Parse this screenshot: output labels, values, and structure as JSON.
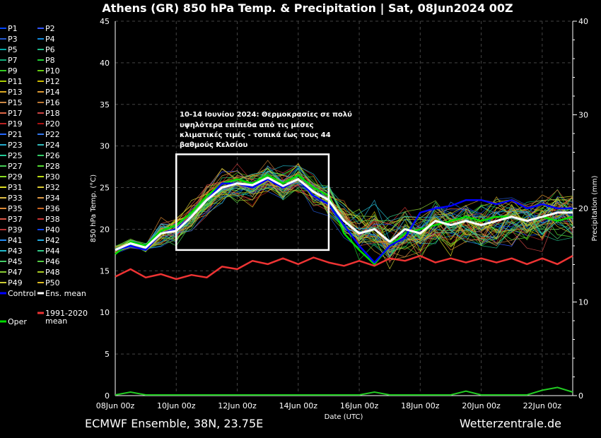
{
  "chart_data": {
    "type": "line",
    "title": "Athens  (GR)  850 hPa Temp. & Precipitation | Sat, 08Jun2024 00Z",
    "ylabel": "850 hPa Temp. (°C)",
    "y2label": "Precipitation (mm)",
    "xlabel": "Date (UTC)",
    "ylim": [
      0,
      45
    ],
    "y2lim": [
      0,
      40
    ],
    "xlim": [
      0,
      15
    ],
    "yticks": [
      "0",
      "5",
      "10",
      "15",
      "20",
      "25",
      "30",
      "35",
      "40",
      "45"
    ],
    "y2ticks": [
      "0",
      "10",
      "20",
      "30",
      "40"
    ],
    "xticks": [
      {
        "x": 0,
        "label": "08Jun 00z"
      },
      {
        "x": 2,
        "label": "10Jun 00z"
      },
      {
        "x": 4,
        "label": "12Jun 00z"
      },
      {
        "x": 6,
        "label": "14Jun 00z"
      },
      {
        "x": 8,
        "label": "16Jun 00z"
      },
      {
        "x": 10,
        "label": "18Jun 00z"
      },
      {
        "x": 12,
        "label": "20Jun 00z"
      },
      {
        "x": 14,
        "label": "22Jun 00z"
      }
    ],
    "grid": true,
    "legend_position": "left",
    "legend": [
      {
        "name": "P1",
        "color": "#0044ff"
      },
      {
        "name": "P2",
        "color": "#3355ff"
      },
      {
        "name": "P3",
        "color": "#2255cc"
      },
      {
        "name": "P4",
        "color": "#1188dd"
      },
      {
        "name": "P5",
        "color": "#00aaaa"
      },
      {
        "name": "P6",
        "color": "#22bb88"
      },
      {
        "name": "P7",
        "color": "#11aa77"
      },
      {
        "name": "P8",
        "color": "#22cc33"
      },
      {
        "name": "P9",
        "color": "#33cc22"
      },
      {
        "name": "P10",
        "color": "#66cc11"
      },
      {
        "name": "P11",
        "color": "#aacc00"
      },
      {
        "name": "P12",
        "color": "#ccbb00"
      },
      {
        "name": "P13",
        "color": "#ddaa22"
      },
      {
        "name": "P14",
        "color": "#dd9933"
      },
      {
        "name": "P15",
        "color": "#cc8844"
      },
      {
        "name": "P16",
        "color": "#bb7733"
      },
      {
        "name": "P17",
        "color": "#dd6644"
      },
      {
        "name": "P18",
        "color": "#cc4444"
      },
      {
        "name": "P19",
        "color": "#bb2222"
      },
      {
        "name": "P20",
        "color": "#aa1111"
      },
      {
        "name": "P21",
        "color": "#2266ff"
      },
      {
        "name": "P22",
        "color": "#3377ee"
      },
      {
        "name": "P23",
        "color": "#22aacc"
      },
      {
        "name": "P24",
        "color": "#33bbbb"
      },
      {
        "name": "P25",
        "color": "#22cc99"
      },
      {
        "name": "P26",
        "color": "#33cc66"
      },
      {
        "name": "P27",
        "color": "#44cc55"
      },
      {
        "name": "P28",
        "color": "#55dd33"
      },
      {
        "name": "P29",
        "color": "#88dd22"
      },
      {
        "name": "P30",
        "color": "#bbdd11"
      },
      {
        "name": "P31",
        "color": "#dddd22"
      },
      {
        "name": "P32",
        "color": "#ddcc33"
      },
      {
        "name": "P33",
        "color": "#ddbb44"
      },
      {
        "name": "P34",
        "color": "#dd9944"
      },
      {
        "name": "P35",
        "color": "#dd8833"
      },
      {
        "name": "P36",
        "color": "#cc6622"
      },
      {
        "name": "P37",
        "color": "#dd5544"
      },
      {
        "name": "P38",
        "color": "#cc3333"
      },
      {
        "name": "P39",
        "color": "#bb3333"
      },
      {
        "name": "P40",
        "color": "#1144ee"
      },
      {
        "name": "P41",
        "color": "#2288ee"
      },
      {
        "name": "P42",
        "color": "#22aadd"
      },
      {
        "name": "P43",
        "color": "#22bbcc"
      },
      {
        "name": "P44",
        "color": "#33cc88"
      },
      {
        "name": "P45",
        "color": "#44cc66"
      },
      {
        "name": "P46",
        "color": "#55cc44"
      },
      {
        "name": "P47",
        "color": "#88cc33"
      },
      {
        "name": "P48",
        "color": "#aacc22"
      },
      {
        "name": "P49",
        "color": "#cccc33"
      },
      {
        "name": "P50",
        "color": "#ddbb22"
      },
      {
        "name": "Control",
        "color": "#0000ff"
      },
      {
        "name": "Ens. mean",
        "color": "#ffffff"
      },
      {
        "name": "1991-2020 mean",
        "color": "#ee3333"
      },
      {
        "name": "Oper",
        "color": "#00dd00"
      }
    ],
    "x": [
      0,
      0.5,
      1,
      1.5,
      2,
      2.5,
      3,
      3.5,
      4,
      4.5,
      5,
      5.5,
      6,
      6.5,
      7,
      7.5,
      8,
      8.5,
      9,
      9.5,
      10,
      10.5,
      11,
      11.5,
      12,
      12.5,
      13,
      13.5,
      14,
      14.5,
      15
    ],
    "series": [
      {
        "name": "Ens. mean",
        "color": "#ffffff",
        "values": [
          17.5,
          18.3,
          17.8,
          19.5,
          19.8,
          21.5,
          23.5,
          25,
          25.5,
          25.3,
          26.2,
          25.2,
          26,
          24.5,
          23.5,
          21,
          19.5,
          20,
          18.5,
          20,
          19.5,
          21,
          20.5,
          21,
          20.5,
          21,
          21.5,
          21,
          21.5,
          22,
          22
        ]
      },
      {
        "name": "Control",
        "color": "#0000ff",
        "values": [
          17.5,
          18,
          17.5,
          19.5,
          20,
          21.5,
          23.5,
          25.5,
          25.5,
          25,
          26,
          25,
          26,
          24,
          23,
          20.5,
          18,
          16,
          18,
          19,
          22,
          22.5,
          22.8,
          23.5,
          23.5,
          23,
          23.5,
          22.5,
          23,
          22.5,
          22.5
        ]
      },
      {
        "name": "Oper",
        "color": "#00dd00",
        "values": [
          17,
          18.5,
          18,
          19.8,
          20.5,
          22,
          24,
          25.5,
          26,
          25.5,
          26.5,
          25.5,
          26.5,
          25,
          24,
          19.5,
          17.5,
          15.8,
          18,
          19.5,
          20,
          20.5,
          21,
          21.5,
          21,
          21.5,
          21.5,
          21,
          21.5,
          21,
          21.5
        ]
      },
      {
        "name": "1991-2020 mean",
        "color": "#ee3333",
        "values": [
          14.3,
          15.2,
          14.2,
          14.6,
          14,
          14.5,
          14.2,
          15.5,
          15.2,
          16.2,
          15.8,
          16.5,
          15.8,
          16.6,
          16,
          15.6,
          16.2,
          15.6,
          16.5,
          16.2,
          16.8,
          16,
          16.5,
          16,
          16.5,
          16,
          16.5,
          15.8,
          16.5,
          15.8,
          16.8
        ]
      }
    ],
    "precipitation": {
      "axis": "y2",
      "values": [
        0,
        0.3,
        0,
        0,
        0,
        0,
        0,
        0,
        0,
        0,
        0,
        0,
        0,
        0,
        0,
        0,
        0,
        0.3,
        0,
        0,
        0,
        0,
        0,
        0.4,
        0,
        0,
        0,
        0,
        0.5,
        0.8,
        0.3
      ]
    },
    "annotation": {
      "lines": [
        "10-14 Ιουνίου 2024: Θερμοκρασίες σε πολύ",
        "υψηλότερα επίπεδα από τις μέσες",
        "κλιματικές τιμές - τοπικά έως τους 44",
        "βαθμούς Κελσίου"
      ],
      "box": {
        "x0": 2,
        "x1": 7,
        "y0": 17.5,
        "y1": 29
      }
    }
  },
  "footer": {
    "left": "ECMWF Ensemble, 38N, 23.75E",
    "right": "Wetterzentrale.de"
  }
}
